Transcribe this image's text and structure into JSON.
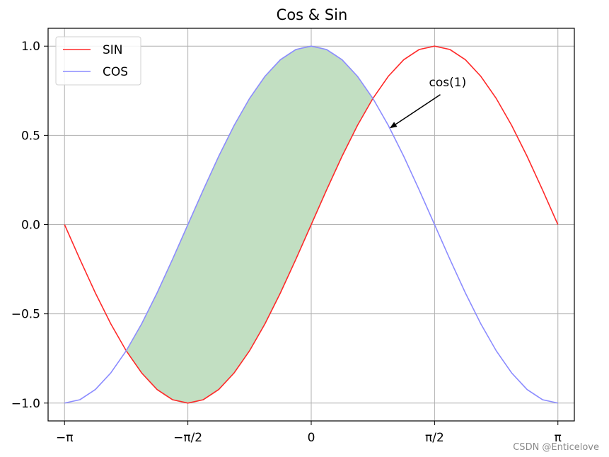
{
  "chart_data": {
    "type": "line",
    "title": "Cos & Sin",
    "xlabel": "",
    "ylabel": "",
    "xlim": [
      -3.351,
      3.351
    ],
    "ylim": [
      -1.1,
      1.1
    ],
    "grid": true,
    "x_ticks": [
      {
        "value": -3.14159,
        "label": "−π"
      },
      {
        "value": -1.5708,
        "label": "−π/2"
      },
      {
        "value": 0,
        "label": "0"
      },
      {
        "value": 1.5708,
        "label": "π/2"
      },
      {
        "value": 3.14159,
        "label": "π"
      }
    ],
    "y_ticks": [
      {
        "value": 1.0,
        "label": "1.0"
      },
      {
        "value": 0.5,
        "label": "0.5"
      },
      {
        "value": 0.0,
        "label": "0.0"
      },
      {
        "value": -0.5,
        "label": "−0.5"
      },
      {
        "value": -1.0,
        "label": "−1.0"
      }
    ],
    "x": [
      -3.1416,
      -2.9452,
      -2.7489,
      -2.5525,
      -2.3562,
      -2.1598,
      -1.9635,
      -1.7671,
      -1.5708,
      -1.3744,
      -1.1781,
      -0.9817,
      -0.7854,
      -0.589,
      -0.3927,
      -0.1963,
      0.0,
      0.1963,
      0.3927,
      0.589,
      0.7854,
      0.9817,
      1.1781,
      1.3744,
      1.5708,
      1.7671,
      1.9635,
      2.1598,
      2.3562,
      2.5525,
      2.7489,
      2.9452,
      3.1416
    ],
    "series": [
      {
        "name": "SIN",
        "color": "#ff2a2a",
        "values": [
          0.0,
          -0.195,
          -0.383,
          -0.556,
          -0.707,
          -0.831,
          -0.924,
          -0.981,
          -1.0,
          -0.981,
          -0.924,
          -0.831,
          -0.707,
          -0.556,
          -0.383,
          -0.195,
          0.0,
          0.195,
          0.383,
          0.556,
          0.707,
          0.831,
          0.924,
          0.981,
          1.0,
          0.981,
          0.924,
          0.831,
          0.707,
          0.556,
          0.383,
          0.195,
          0.0
        ]
      },
      {
        "name": "COS",
        "color": "#8c8cff",
        "values": [
          -1.0,
          -0.981,
          -0.924,
          -0.831,
          -0.707,
          -0.556,
          -0.383,
          -0.195,
          0.0,
          0.195,
          0.383,
          0.556,
          0.707,
          0.831,
          0.924,
          0.981,
          1.0,
          0.981,
          0.924,
          0.831,
          0.707,
          0.556,
          0.383,
          0.195,
          0.0,
          -0.195,
          -0.383,
          -0.556,
          -0.707,
          -0.831,
          -0.924,
          -0.981,
          -1.0
        ]
      }
    ],
    "fill_between": {
      "color": "#c2dfc2",
      "x_from": -2.3562,
      "x_to": 0.7854,
      "note_series": [
        "COS",
        "SIN"
      ]
    },
    "annotation": {
      "text": "cos(1)",
      "point": [
        1.0,
        0.54
      ],
      "text_at": [
        1.5,
        0.76
      ]
    },
    "legend": {
      "position": "top-left",
      "entries": [
        "SIN",
        "COS"
      ]
    }
  },
  "watermark": "CSDN @Enticelove"
}
